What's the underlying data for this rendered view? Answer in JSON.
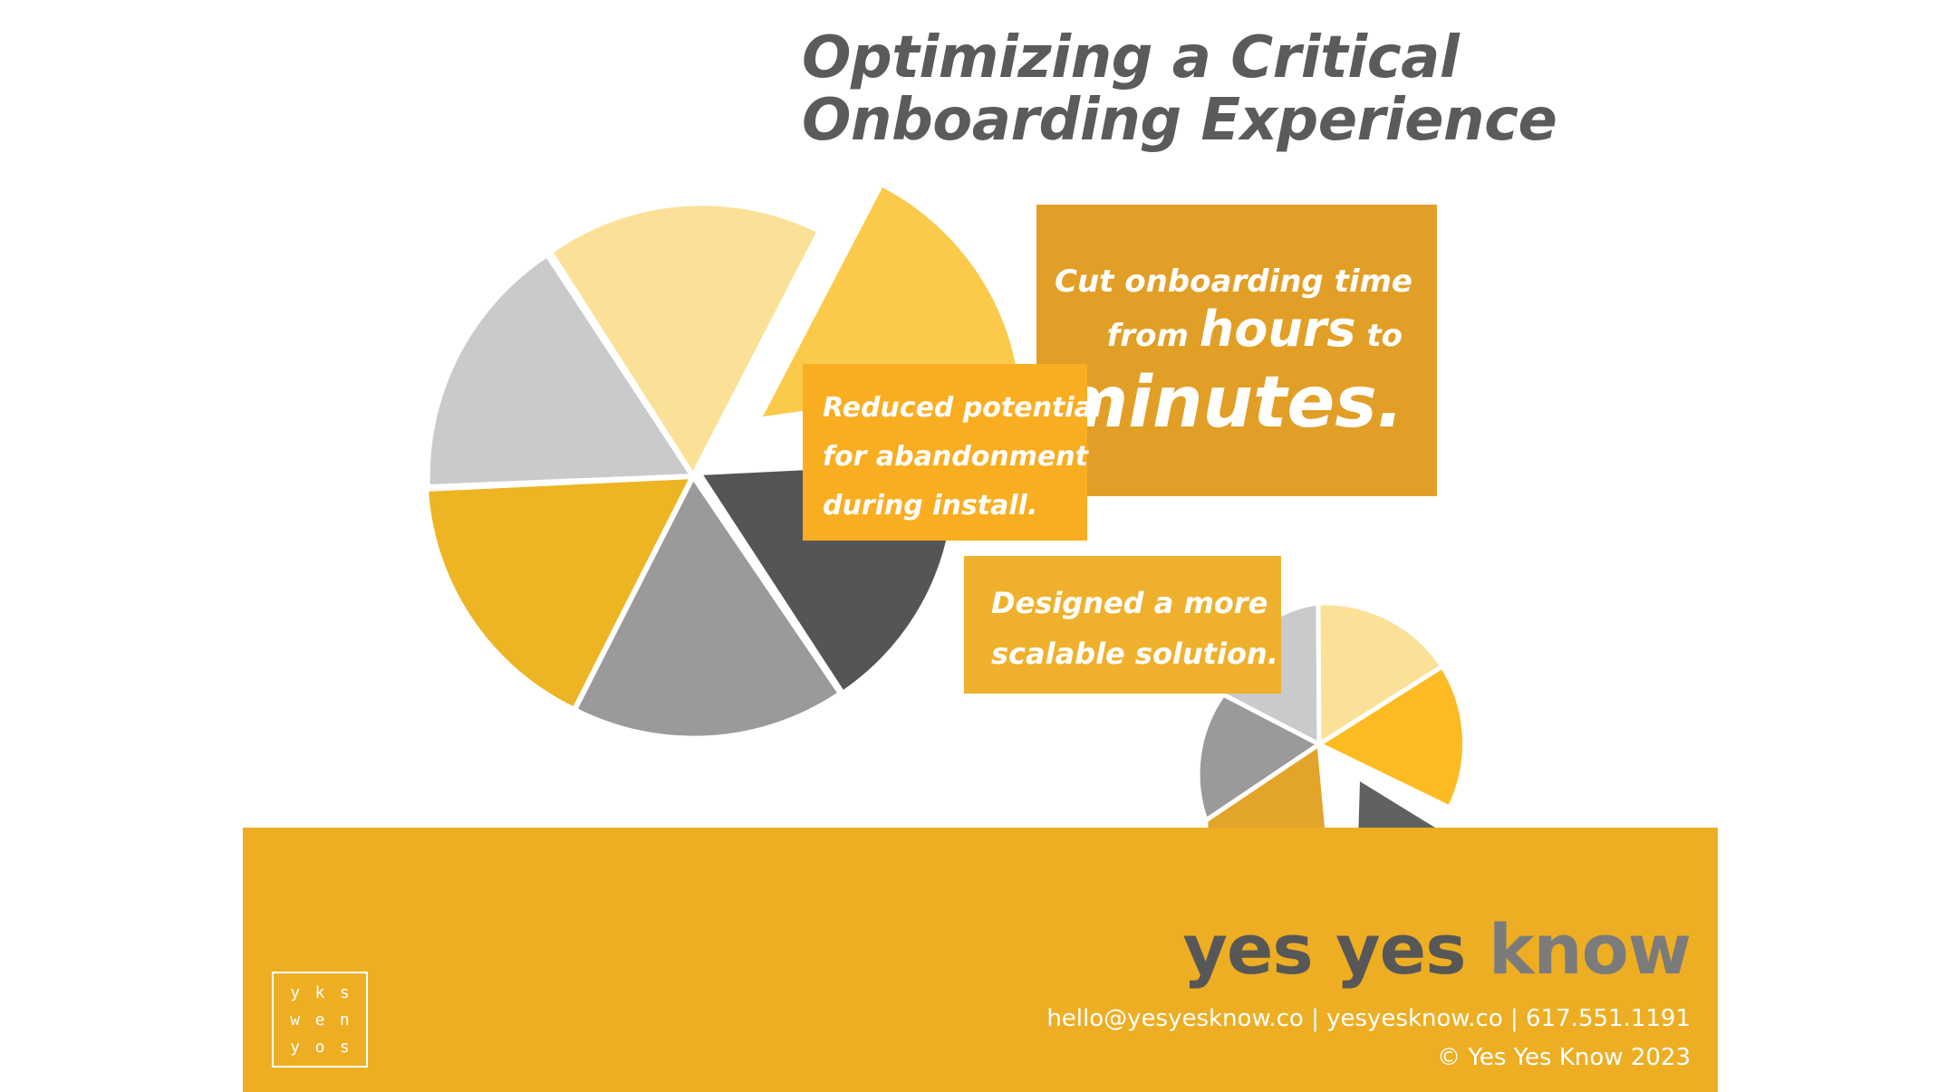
{
  "slide": {
    "title_lines": [
      "Optimizing a Critical",
      "Onboarding Experience"
    ],
    "callouts": {
      "onboarding_time": {
        "line1": "Cut onboarding time",
        "line2_pre": "from ",
        "line2_emph": "hours",
        "line2_post": " to",
        "line3": "minutes."
      },
      "abandonment": {
        "lines": [
          "Reduced potential",
          "for abandonment",
          "during install."
        ]
      },
      "scalable": {
        "lines": [
          "Designed a more",
          "scalable solution."
        ]
      }
    },
    "colors": {
      "gold": "#edae24",
      "amber": "#e29f27",
      "light_yellow": "#fbe197",
      "yellow": "#fbca4a",
      "light_gray": "#c9cacc",
      "mid_gray": "#9a9a9a",
      "dark_gray": "#555555",
      "title_gray": "#5b5b5d"
    }
  },
  "footer": {
    "brand": {
      "word1": "yes",
      "word2": "yes",
      "word3": "know"
    },
    "contact": {
      "email": "hello@yesyesknow.co",
      "website": "yesyesknow.co",
      "phone": "617.551.1191",
      "separator": "|"
    },
    "copyright": "© Yes Yes Know 2023",
    "logo_letters": [
      "y",
      "k",
      "s",
      "w",
      "e",
      "n",
      "y",
      "o",
      "s"
    ]
  }
}
